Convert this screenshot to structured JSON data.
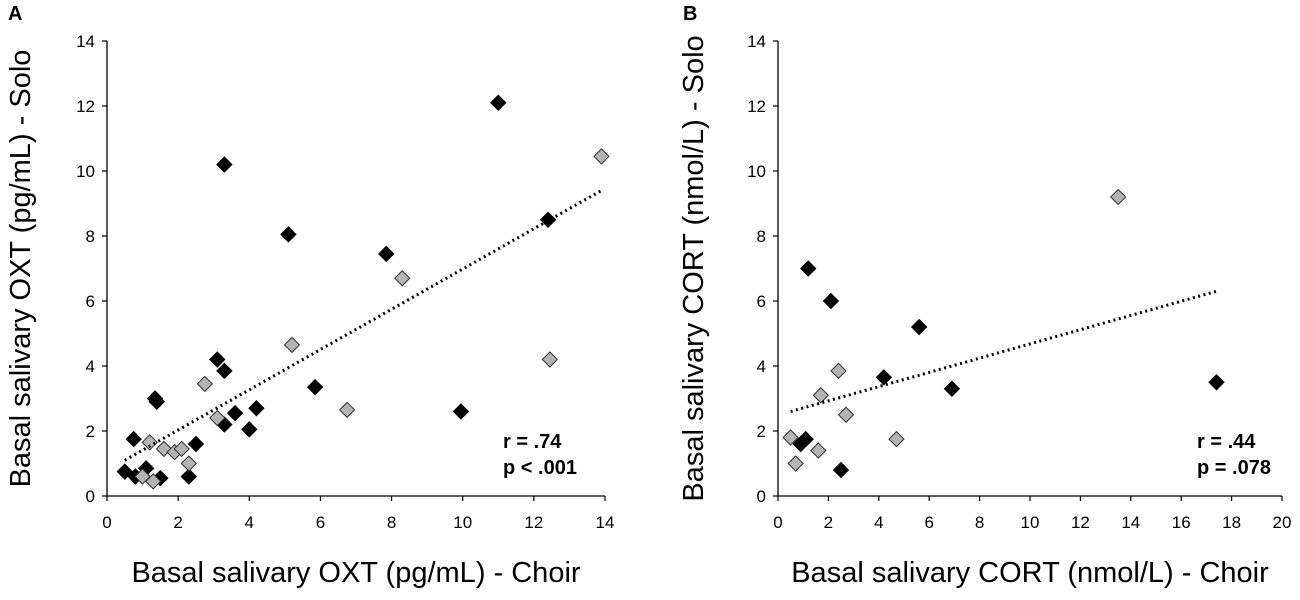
{
  "chart_data": [
    {
      "panel": "A",
      "type": "scatter",
      "xlabel": "Basal salivary OXT (pg/mL) - Choir",
      "ylabel": "Basal salivary OXT (pg/mL) - Solo",
      "xlim": [
        0,
        14
      ],
      "ylim": [
        0,
        14
      ],
      "xticks": [
        0,
        2,
        4,
        6,
        8,
        10,
        12,
        14
      ],
      "yticks": [
        0,
        2,
        4,
        6,
        8,
        10,
        12,
        14
      ],
      "grid": false,
      "series": [
        {
          "name": "black",
          "color": "#000000",
          "points": [
            [
              0.5,
              0.75
            ],
            [
              0.75,
              1.75
            ],
            [
              0.8,
              0.6
            ],
            [
              1.1,
              0.85
            ],
            [
              1.5,
              0.55
            ],
            [
              1.35,
              3.0
            ],
            [
              1.4,
              2.9
            ],
            [
              2.3,
              0.6
            ],
            [
              2.5,
              1.6
            ],
            [
              3.1,
              4.2
            ],
            [
              3.3,
              3.85
            ],
            [
              3.3,
              10.2
            ],
            [
              3.3,
              2.2
            ],
            [
              3.6,
              2.55
            ],
            [
              4.0,
              2.05
            ],
            [
              4.2,
              2.7
            ],
            [
              5.1,
              8.05
            ],
            [
              5.85,
              3.35
            ],
            [
              7.85,
              7.45
            ],
            [
              9.95,
              2.6
            ],
            [
              11.0,
              12.1
            ],
            [
              12.4,
              8.5
            ]
          ]
        },
        {
          "name": "gray",
          "color": "#b4b4b4",
          "points": [
            [
              1.0,
              0.6
            ],
            [
              1.2,
              1.65
            ],
            [
              1.3,
              0.45
            ],
            [
              1.6,
              1.45
            ],
            [
              1.9,
              1.35
            ],
            [
              2.1,
              1.45
            ],
            [
              2.3,
              1.0
            ],
            [
              2.75,
              3.45
            ],
            [
              3.1,
              2.4
            ],
            [
              5.2,
              4.65
            ],
            [
              6.75,
              2.65
            ],
            [
              8.3,
              6.7
            ],
            [
              12.45,
              4.2
            ],
            [
              13.9,
              10.45
            ]
          ]
        }
      ],
      "trendline": {
        "style": "dotted",
        "x": [
          0.5,
          13.9
        ],
        "y": [
          1.1,
          9.4
        ]
      },
      "annotations": [
        "r = .74",
        "p < .001"
      ]
    },
    {
      "panel": "B",
      "type": "scatter",
      "xlabel": "Basal salivary CORT (nmol/L) - Choir",
      "ylabel": "Basal salivary CORT (nmol/L) - Solo",
      "xlim": [
        0,
        20
      ],
      "ylim": [
        0,
        14
      ],
      "xticks": [
        0,
        2,
        4,
        6,
        8,
        10,
        12,
        14,
        16,
        18,
        20
      ],
      "yticks": [
        0,
        2,
        4,
        6,
        8,
        10,
        12,
        14
      ],
      "grid": false,
      "series": [
        {
          "name": "black",
          "color": "#000000",
          "points": [
            [
              0.9,
              1.6
            ],
            [
              1.1,
              1.75
            ],
            [
              1.2,
              7.0
            ],
            [
              2.1,
              6.0
            ],
            [
              2.5,
              0.8
            ],
            [
              4.2,
              3.65
            ],
            [
              5.6,
              5.2
            ],
            [
              6.9,
              3.3
            ],
            [
              17.4,
              3.5
            ]
          ]
        },
        {
          "name": "gray",
          "color": "#b4b4b4",
          "points": [
            [
              0.5,
              1.8
            ],
            [
              0.7,
              1.0
            ],
            [
              1.6,
              1.4
            ],
            [
              1.7,
              3.1
            ],
            [
              2.4,
              3.85
            ],
            [
              2.7,
              2.5
            ],
            [
              4.7,
              1.75
            ],
            [
              13.5,
              9.2
            ]
          ]
        }
      ],
      "trendline": {
        "style": "dotted",
        "x": [
          0.5,
          17.4
        ],
        "y": [
          2.6,
          6.3
        ]
      },
      "annotations": [
        "r = .44",
        "p = .078"
      ]
    }
  ]
}
